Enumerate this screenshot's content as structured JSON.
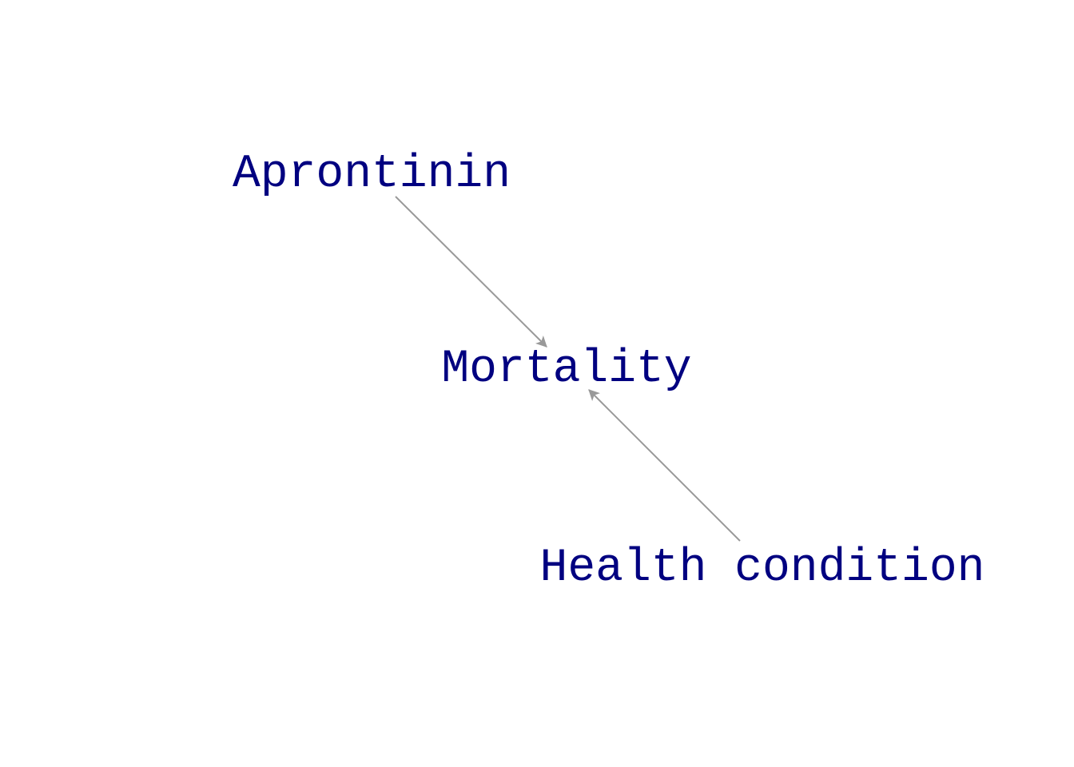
{
  "diagram": {
    "type": "directed-acyclic-graph",
    "colors": {
      "node_text": "#000080",
      "edge": "#999999",
      "background": "#ffffff"
    },
    "nodes": [
      {
        "id": "apronitin",
        "label": "Aprontinin"
      },
      {
        "id": "mortality",
        "label": "Mortality"
      },
      {
        "id": "health",
        "label": "Health condition"
      }
    ],
    "edges": [
      {
        "from": "apronitin",
        "to": "mortality"
      },
      {
        "from": "health",
        "to": "mortality"
      }
    ]
  }
}
